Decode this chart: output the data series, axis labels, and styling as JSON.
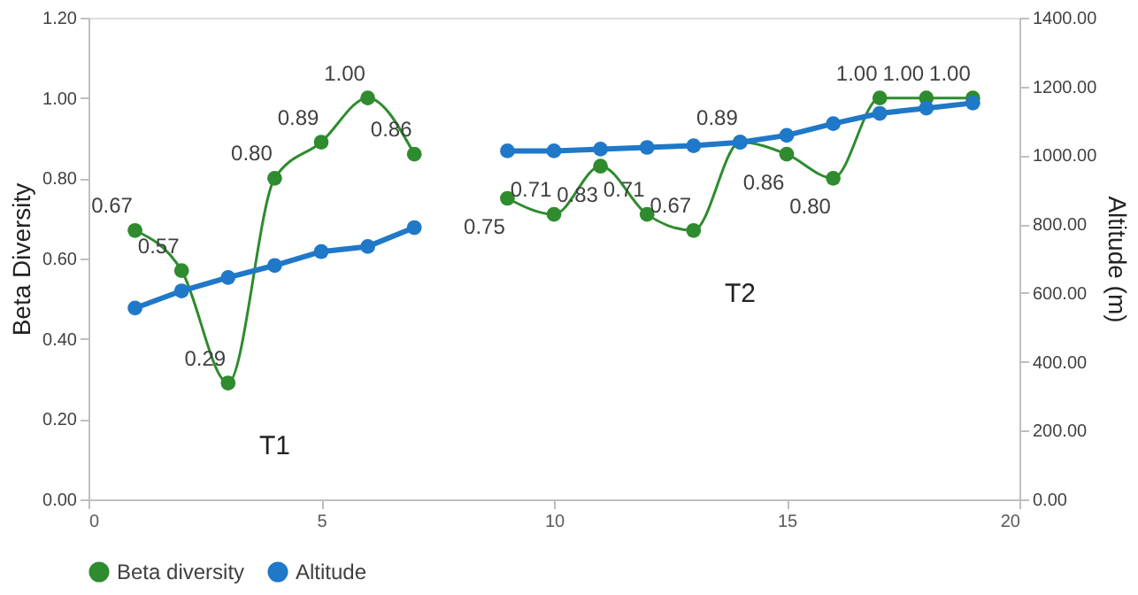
{
  "chart_data": {
    "type": "line",
    "ylabel": "Beta Diversity",
    "y2label": "Altitude (m)",
    "x": [
      1,
      2,
      3,
      4,
      5,
      6,
      7,
      8,
      9,
      10,
      11,
      12,
      13,
      14,
      15,
      16,
      17,
      18,
      19
    ],
    "series": [
      {
        "name": "Beta diversity",
        "color": "#2e8b2e",
        "values": [
          0.67,
          0.57,
          0.29,
          0.8,
          0.89,
          1.0,
          0.86,
          null,
          0.75,
          0.71,
          0.83,
          0.71,
          0.67,
          0.89,
          0.86,
          0.8,
          1.0,
          1.0,
          1.0
        ],
        "value_labels": [
          "0.67",
          "0.57",
          "0.29",
          "0.80",
          "0.89",
          "1.00",
          "0.86",
          null,
          "0.75",
          "0.71",
          "0.83",
          "0.71",
          "0.67",
          "0.89",
          "0.86",
          "0.80",
          "1.00",
          "1.00",
          "1.00"
        ]
      },
      {
        "name": "Altitude",
        "color": "#1f78c8",
        "axis": "y2",
        "values": [
          556,
          606,
          645,
          680,
          720,
          735,
          790,
          null,
          1013,
          1013,
          1018,
          1023,
          1028,
          1038,
          1058,
          1092,
          1122,
          1137,
          1152
        ]
      }
    ],
    "xlim": [
      0,
      20
    ],
    "xticks": [
      0,
      5,
      10,
      15,
      20
    ],
    "ylim": [
      0,
      1.2
    ],
    "yticks": [
      {
        "value": 0,
        "label": "0.00"
      },
      {
        "value": 0.2,
        "label": "0.20"
      },
      {
        "value": 0.4,
        "label": "0.40"
      },
      {
        "value": 0.6,
        "label": "0.60"
      },
      {
        "value": 0.8,
        "label": "0.80"
      },
      {
        "value": 1.0,
        "label": "1.00"
      },
      {
        "value": 1.2,
        "label": "1.20"
      }
    ],
    "y2lim": [
      0,
      1400
    ],
    "y2ticks": [
      {
        "value": 0,
        "label": "0.00"
      },
      {
        "value": 200,
        "label": "200.00"
      },
      {
        "value": 400,
        "label": "400.00"
      },
      {
        "value": 600,
        "label": "600.00"
      },
      {
        "value": 800,
        "label": "800.00"
      },
      {
        "value": 1000,
        "label": "1000.00"
      },
      {
        "value": 1200,
        "label": "1200.00"
      },
      {
        "value": 1400,
        "label": "1400.00"
      }
    ],
    "annotations": [
      "T1",
      "T2"
    ],
    "marker": "circle",
    "line_style": "solid",
    "grid": false,
    "legend": "bottom"
  }
}
